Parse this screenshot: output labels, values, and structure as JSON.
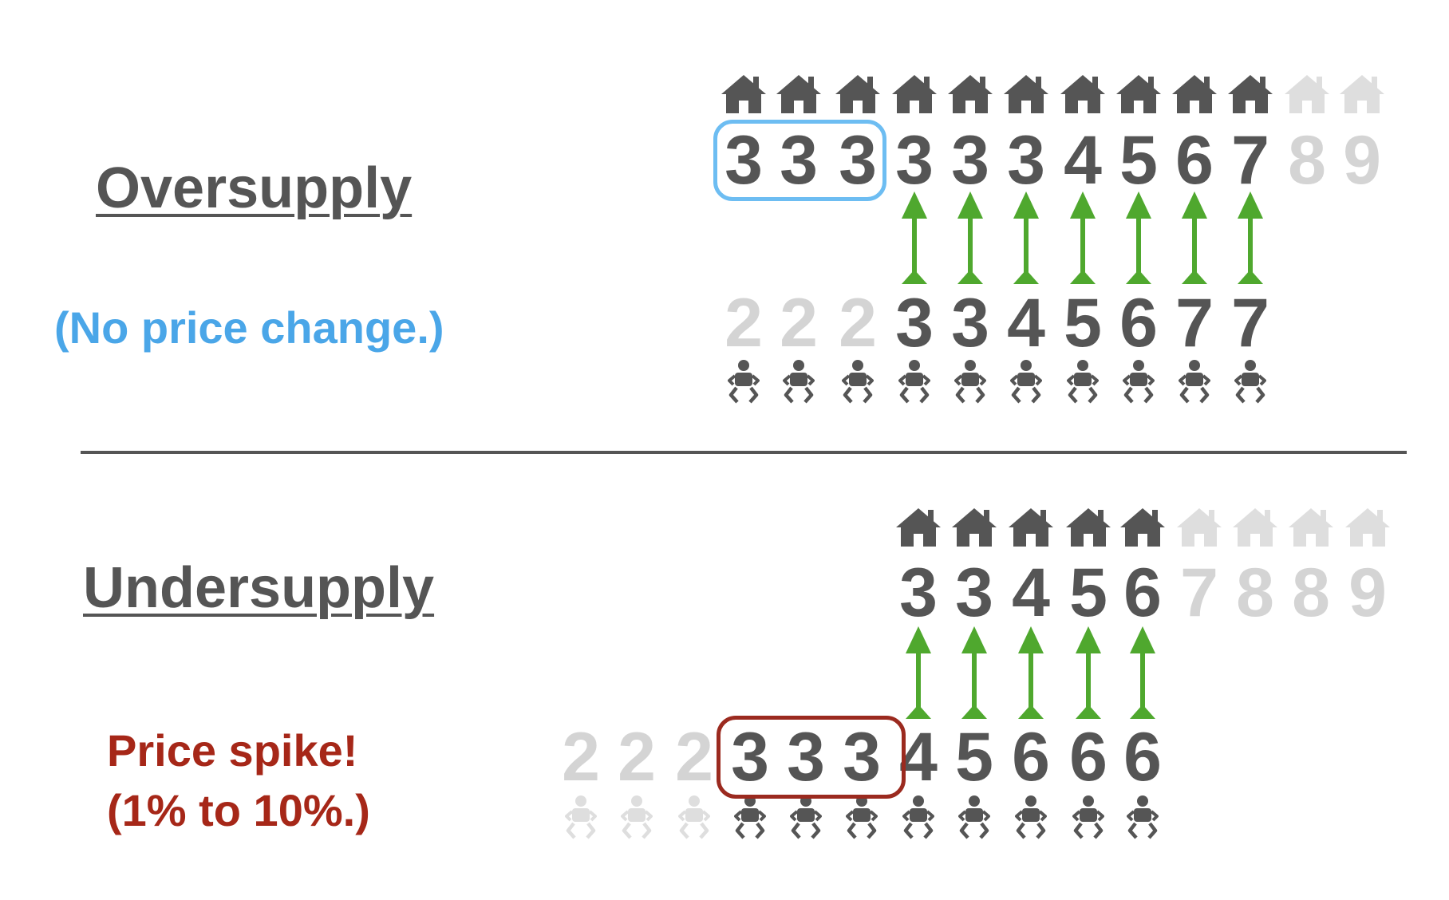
{
  "colors": {
    "dark": "#555555",
    "faded": "#d4d4d4",
    "faded_icon": "#dedede",
    "arrow": "#4fa82e",
    "blue": "#4aa6e8",
    "box_blue": "#6dbdf2",
    "red": "#a62718",
    "box_red": "#9b2a1f",
    "divider": "#555555"
  },
  "icons": {
    "house": "house-icon",
    "baby": "baby-icon",
    "arrow": "arrow-up-icon"
  },
  "oversupply": {
    "title": "Oversupply",
    "note": "(No price change.)",
    "houses": [
      {
        "v": "3",
        "f": false
      },
      {
        "v": "3",
        "f": false
      },
      {
        "v": "3",
        "f": false
      },
      {
        "v": "3",
        "f": false
      },
      {
        "v": "3",
        "f": false
      },
      {
        "v": "3",
        "f": false
      },
      {
        "v": "4",
        "f": false
      },
      {
        "v": "5",
        "f": false
      },
      {
        "v": "6",
        "f": false
      },
      {
        "v": "7",
        "f": false
      },
      {
        "v": "8",
        "f": true
      },
      {
        "v": "9",
        "f": true
      }
    ],
    "people": [
      {
        "v": "2",
        "f": true
      },
      {
        "v": "2",
        "f": true
      },
      {
        "v": "2",
        "f": true
      },
      {
        "v": "3",
        "f": false
      },
      {
        "v": "3",
        "f": false
      },
      {
        "v": "4",
        "f": false
      },
      {
        "v": "5",
        "f": false
      },
      {
        "v": "6",
        "f": false
      },
      {
        "v": "7",
        "f": false
      },
      {
        "v": "7",
        "f": false
      }
    ],
    "arrows": 7
  },
  "undersupply": {
    "title": "Undersupply",
    "note_line1": "Price spike!",
    "note_line2": "(1% to 10%.)",
    "houses": [
      {
        "v": "3",
        "f": false
      },
      {
        "v": "3",
        "f": false
      },
      {
        "v": "4",
        "f": false
      },
      {
        "v": "5",
        "f": false
      },
      {
        "v": "6",
        "f": false
      },
      {
        "v": "7",
        "f": true
      },
      {
        "v": "8",
        "f": true
      },
      {
        "v": "8",
        "f": true
      },
      {
        "v": "9",
        "f": true
      }
    ],
    "people": [
      {
        "v": "2",
        "f": true
      },
      {
        "v": "2",
        "f": true
      },
      {
        "v": "2",
        "f": true
      },
      {
        "v": "3",
        "f": false
      },
      {
        "v": "3",
        "f": false
      },
      {
        "v": "3",
        "f": false
      },
      {
        "v": "4",
        "f": false
      },
      {
        "v": "5",
        "f": false
      },
      {
        "v": "6",
        "f": false
      },
      {
        "v": "6",
        "f": false
      },
      {
        "v": "6",
        "f": false
      }
    ],
    "arrows": 5
  }
}
